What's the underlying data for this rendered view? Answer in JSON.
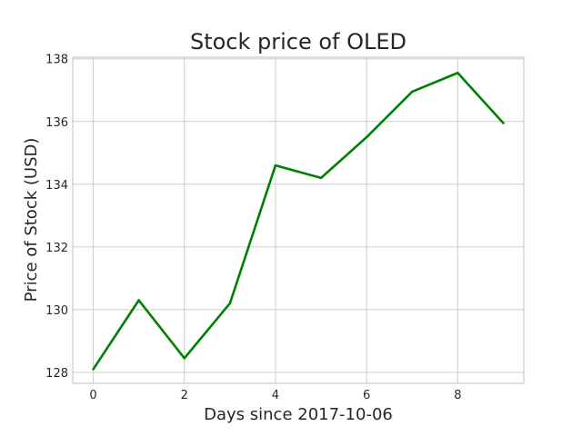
{
  "chart_data": {
    "type": "line",
    "title": "Stock price of OLED",
    "xlabel": "Days since 2017-10-06",
    "ylabel": "Price of Stock (USD)",
    "x": [
      0,
      1,
      2,
      3,
      4,
      5,
      6,
      7,
      8,
      9
    ],
    "xlim": [
      -0.45,
      9.45
    ],
    "ylim": [
      127.65,
      138.05
    ],
    "xticks": [
      0,
      2,
      4,
      6,
      8
    ],
    "yticks": [
      128,
      130,
      132,
      134,
      136,
      138
    ],
    "grid": true,
    "series": [
      {
        "color": "#008000",
        "values": [
          128.1,
          130.3,
          128.45,
          130.2,
          134.6,
          134.2,
          135.5,
          136.95,
          137.55,
          135.95
        ]
      }
    ]
  }
}
